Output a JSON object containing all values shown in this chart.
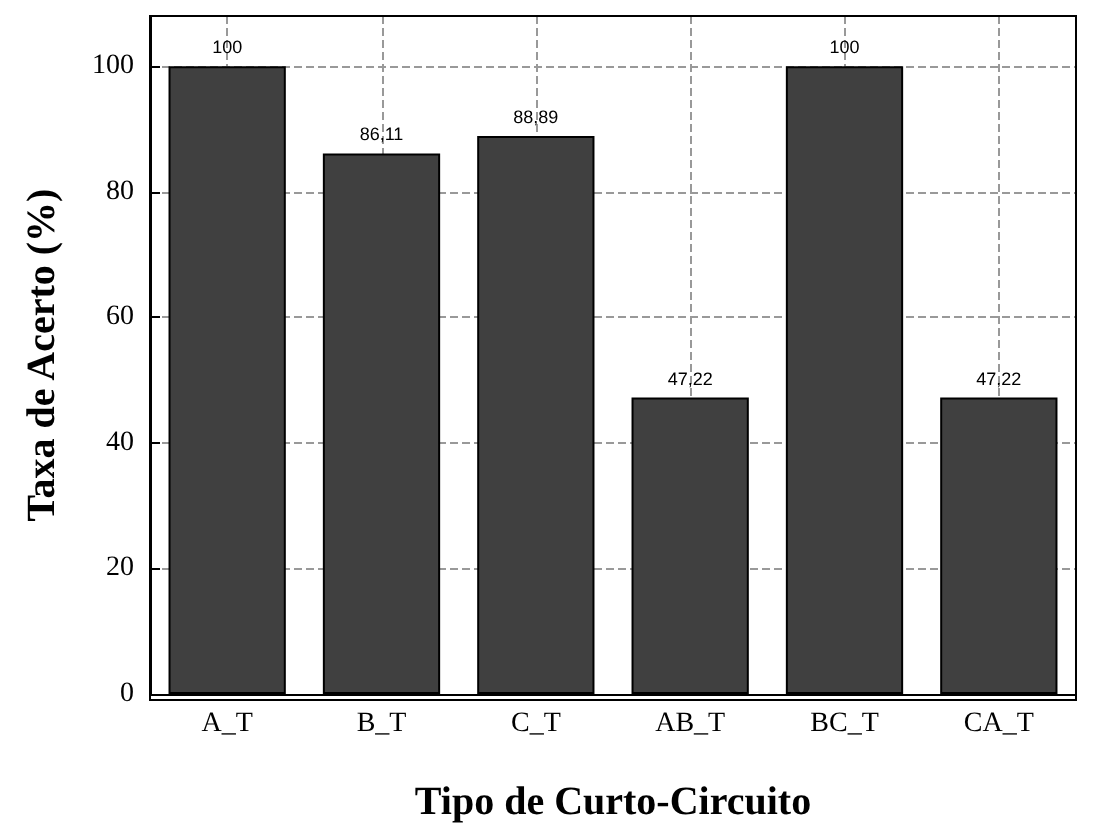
{
  "chart_data": {
    "type": "bar",
    "xlabel": "Tipo de Curto-Circuito",
    "ylabel": "Taxa de Acerto (%)",
    "categories": [
      "A_T",
      "B_T",
      "C_T",
      "AB_T",
      "BC_T",
      "CA_T"
    ],
    "values": [
      100,
      86.11,
      88.89,
      47.22,
      100,
      47.22
    ],
    "value_labels": [
      "100",
      "86,11",
      "88,89",
      "47,22",
      "100",
      "47,22"
    ],
    "color": "#404040",
    "ylim": [
      0,
      108
    ],
    "yticks": [
      0,
      20,
      40,
      60,
      80,
      100
    ],
    "grid": true
  }
}
